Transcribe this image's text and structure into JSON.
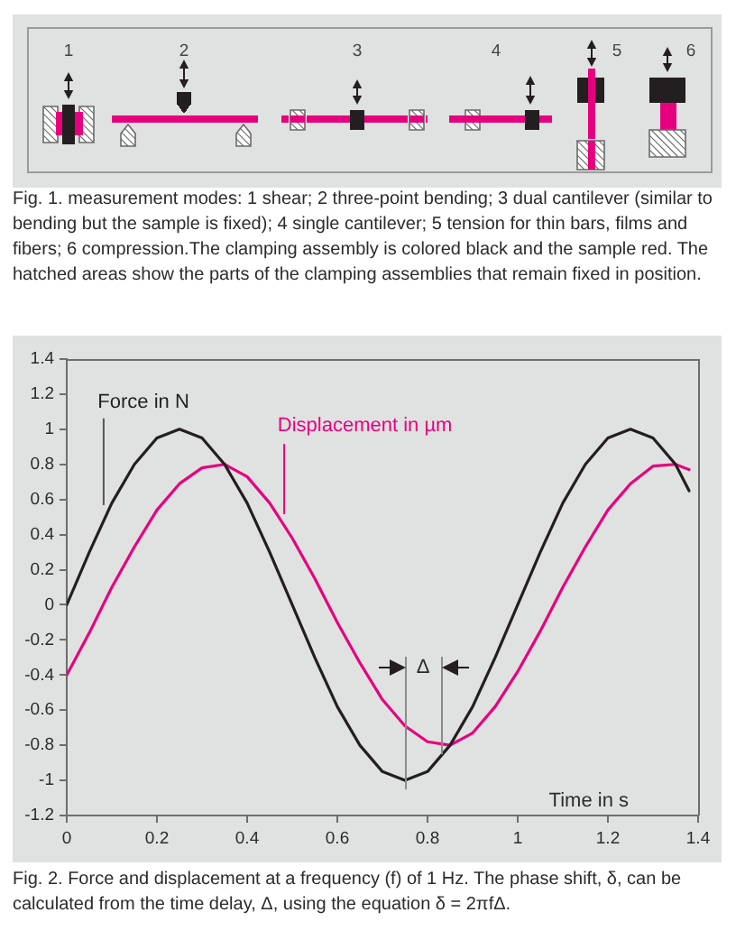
{
  "chart_data": [
    {
      "type": "other",
      "categories": [
        "1",
        "2",
        "3",
        "4",
        "5",
        "6"
      ],
      "annotations": [
        "Fig. 1. measurement modes: 1 shear; 2 three-point bending; 3 dual cantilever (similar to bending but the sample is fixed); 4 single cantilever; 5 tension for thin bars, films and fibers; 6 compression.The clamping assembly is colored black and the sample red. The hatched areas show the parts of the clamping assemblies that remain fixed in position."
      ]
    },
    {
      "type": "line",
      "xlabel": "Time in s",
      "marker": "none",
      "x": [
        0,
        0.05,
        0.1,
        0.15,
        0.2,
        0.25,
        0.3,
        0.35,
        0.4,
        0.45,
        0.5,
        0.55,
        0.6,
        0.65,
        0.7,
        0.75,
        0.8,
        0.85,
        0.9,
        0.95,
        1,
        1.05,
        1.1,
        1.15,
        1.2,
        1.25,
        1.3,
        1.35,
        1.38
      ],
      "series": [
        {
          "name": "Force in N",
          "color": "#231f20",
          "values": [
            0,
            0.3,
            0.58,
            0.8,
            0.95,
            1,
            0.95,
            0.8,
            0.58,
            0.3,
            0,
            -0.3,
            -0.58,
            -0.8,
            -0.95,
            -1,
            -0.95,
            -0.8,
            -0.58,
            -0.3,
            0,
            0.3,
            0.58,
            0.8,
            0.95,
            1,
            0.95,
            0.8,
            0.65
          ]
        },
        {
          "name": "Displacement in µm",
          "color": "#e6007e",
          "values": [
            -0.4,
            -0.16,
            0.1,
            0.33,
            0.54,
            0.69,
            0.78,
            0.8,
            0.73,
            0.58,
            0.38,
            0.15,
            -0.1,
            -0.33,
            -0.54,
            -0.69,
            -0.78,
            -0.8,
            -0.73,
            -0.58,
            -0.38,
            -0.15,
            0.1,
            0.33,
            0.54,
            0.69,
            0.79,
            0.8,
            0.77
          ]
        }
      ],
      "xlim": [
        0,
        1.4
      ],
      "xticks": [
        0,
        0.2,
        0.4,
        0.6,
        0.8,
        1,
        1.2,
        1.4
      ],
      "ylim": [
        -1.2,
        1.4
      ],
      "yticks": [
        -1.2,
        -1,
        -0.8,
        -0.6,
        -0.4,
        -0.2,
        0,
        0.2,
        0.4,
        0.6,
        0.8,
        1,
        1.2,
        1.4
      ],
      "ref_lines": [
        {
          "axis": "x",
          "value": 0.75,
          "color": "#8a8a8a"
        },
        {
          "axis": "x",
          "value": 0.83,
          "color": "#8a8a8a"
        }
      ],
      "annotations": [
        "Δ",
        "Fig. 2. Force and displacement at a frequency (f) of 1 Hz. The phase shift, δ, can be calculated from the time delay, Δ, using the equation δ = 2πfΔ."
      ]
    }
  ]
}
